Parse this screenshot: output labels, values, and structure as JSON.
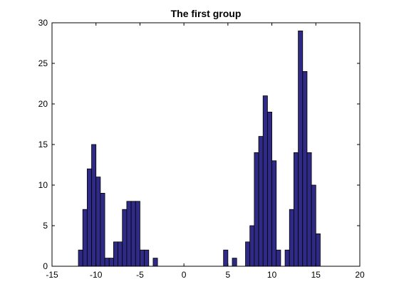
{
  "chart_data": {
    "type": "bar",
    "title": "The first group",
    "xlabel": "",
    "ylabel": "",
    "xlim": [
      -15,
      20
    ],
    "ylim": [
      0,
      30
    ],
    "x_ticks": [
      -15,
      -10,
      -5,
      0,
      5,
      10,
      15,
      20
    ],
    "y_ticks": [
      0,
      5,
      10,
      15,
      20,
      25,
      30
    ],
    "x_tick_labels": [
      "-15",
      "-10",
      "-5",
      "0",
      "5",
      "10",
      "15",
      "20"
    ],
    "y_tick_labels": [
      "0",
      "5",
      "10",
      "15",
      "20",
      "25",
      "30"
    ],
    "bin_width": 0.5,
    "bin_start": -12,
    "values": [
      2,
      7,
      12,
      15,
      11,
      9,
      1,
      1,
      3,
      3,
      7,
      8,
      8,
      8,
      2,
      2,
      0,
      1,
      0,
      0,
      0,
      0,
      0,
      0,
      0,
      0,
      0,
      0,
      0,
      0,
      0,
      0,
      0,
      2,
      0,
      1,
      0,
      0,
      3,
      5,
      14,
      16,
      21,
      19,
      13,
      2,
      0,
      2,
      7,
      14,
      29,
      24,
      14,
      10,
      4
    ],
    "grid": false,
    "bar_color": "#2f2a85",
    "edge_color": "#000000"
  }
}
